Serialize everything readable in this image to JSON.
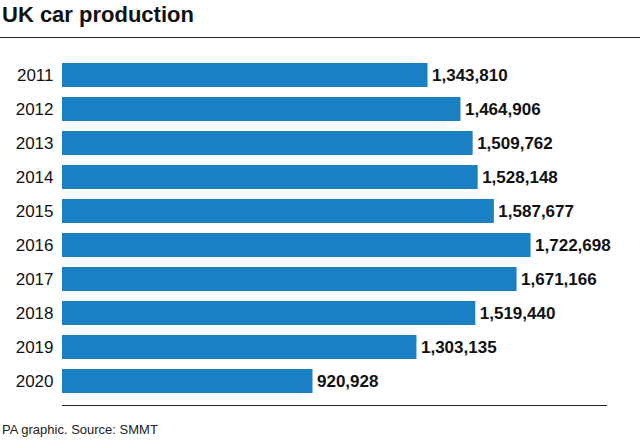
{
  "chart_data": {
    "type": "bar",
    "title": "UK car production",
    "caption": "PA graphic. Source: SMMT",
    "orientation": "horizontal",
    "categories": [
      "2011",
      "2012",
      "2013",
      "2014",
      "2015",
      "2016",
      "2017",
      "2018",
      "2019",
      "2020"
    ],
    "values": [
      1343810,
      1464906,
      1509762,
      1528148,
      1587677,
      1722698,
      1671166,
      1519440,
      1303135,
      920928
    ],
    "value_labels": [
      "1,343,810",
      "1,464,906",
      "1,509,762",
      "1,528,148",
      "1,587,677",
      "1,722,698",
      "1,671,166",
      "1,519,440",
      "1,303,135",
      "920,928"
    ],
    "color": "#1b7fc4",
    "data_labels": true,
    "tick_labels": "y",
    "grid": false,
    "xlim": [
      0,
      2000000
    ],
    "xticks": []
  }
}
